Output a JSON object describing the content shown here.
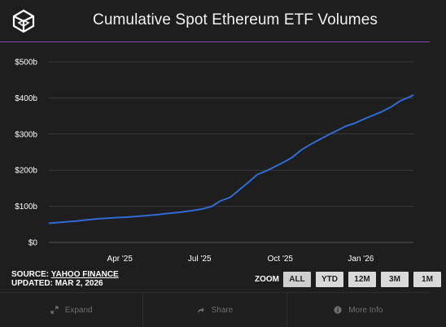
{
  "header": {
    "title": "Cumulative Spot Ethereum ETF Volumes",
    "logo_icon": "cube-logo-icon",
    "accent_rule_color": "#8a3fb8"
  },
  "chart_data": {
    "type": "line",
    "title": "Cumulative Spot Ethereum ETF Volumes",
    "xlabel": "",
    "ylabel": "",
    "y_tick_labels": [
      "$0",
      "$100b",
      "$200b",
      "$300b",
      "$400b",
      "$500b"
    ],
    "y_ticks": [
      0,
      100,
      200,
      300,
      400,
      500
    ],
    "ylim": [
      0,
      500
    ],
    "y_unit": "billions USD",
    "x_tick_labels": [
      "Apr '25",
      "Jul '25",
      "Oct '25",
      "Jan '26"
    ],
    "x_ticks": [
      "2025-04-01",
      "2025-07-01",
      "2025-10-01",
      "2026-01-01"
    ],
    "xlim": [
      "2025-01-10",
      "2026-03-02"
    ],
    "grid": true,
    "line_color": "#2f6bd6",
    "series": [
      {
        "x": [
          "2025-01-10",
          "2025-01-25",
          "2025-02-10",
          "2025-02-25",
          "2025-03-10",
          "2025-03-25",
          "2025-04-10",
          "2025-04-25",
          "2025-05-10",
          "2025-05-25",
          "2025-06-10",
          "2025-06-25",
          "2025-07-05",
          "2025-07-15",
          "2025-07-25",
          "2025-08-05",
          "2025-08-15",
          "2025-08-25",
          "2025-09-05",
          "2025-09-15",
          "2025-09-25",
          "2025-10-05",
          "2025-10-15",
          "2025-10-25",
          "2025-11-05",
          "2025-11-15",
          "2025-11-25",
          "2025-12-05",
          "2025-12-15",
          "2025-12-25",
          "2026-01-05",
          "2026-01-15",
          "2026-01-25",
          "2026-02-05",
          "2026-02-15",
          "2026-02-25",
          "2026-03-02"
        ],
        "values": [
          53,
          56,
          59,
          63,
          66,
          68,
          70,
          73,
          76,
          80,
          84,
          89,
          93,
          100,
          115,
          125,
          145,
          165,
          188,
          198,
          210,
          222,
          236,
          256,
          272,
          285,
          298,
          310,
          322,
          330,
          342,
          352,
          362,
          376,
          392,
          402,
          408
        ]
      }
    ]
  },
  "source": {
    "label": "SOURCE:",
    "name": "YAHOO FINANCE",
    "updated": "UPDATED: MAR 2, 2026"
  },
  "zoom": {
    "label": "ZOOM",
    "options": [
      "ALL",
      "YTD",
      "12M",
      "3M",
      "1M"
    ],
    "selected": "ALL"
  },
  "footer": {
    "expand": "Expand",
    "share": "Share",
    "more_info": "More Info"
  }
}
